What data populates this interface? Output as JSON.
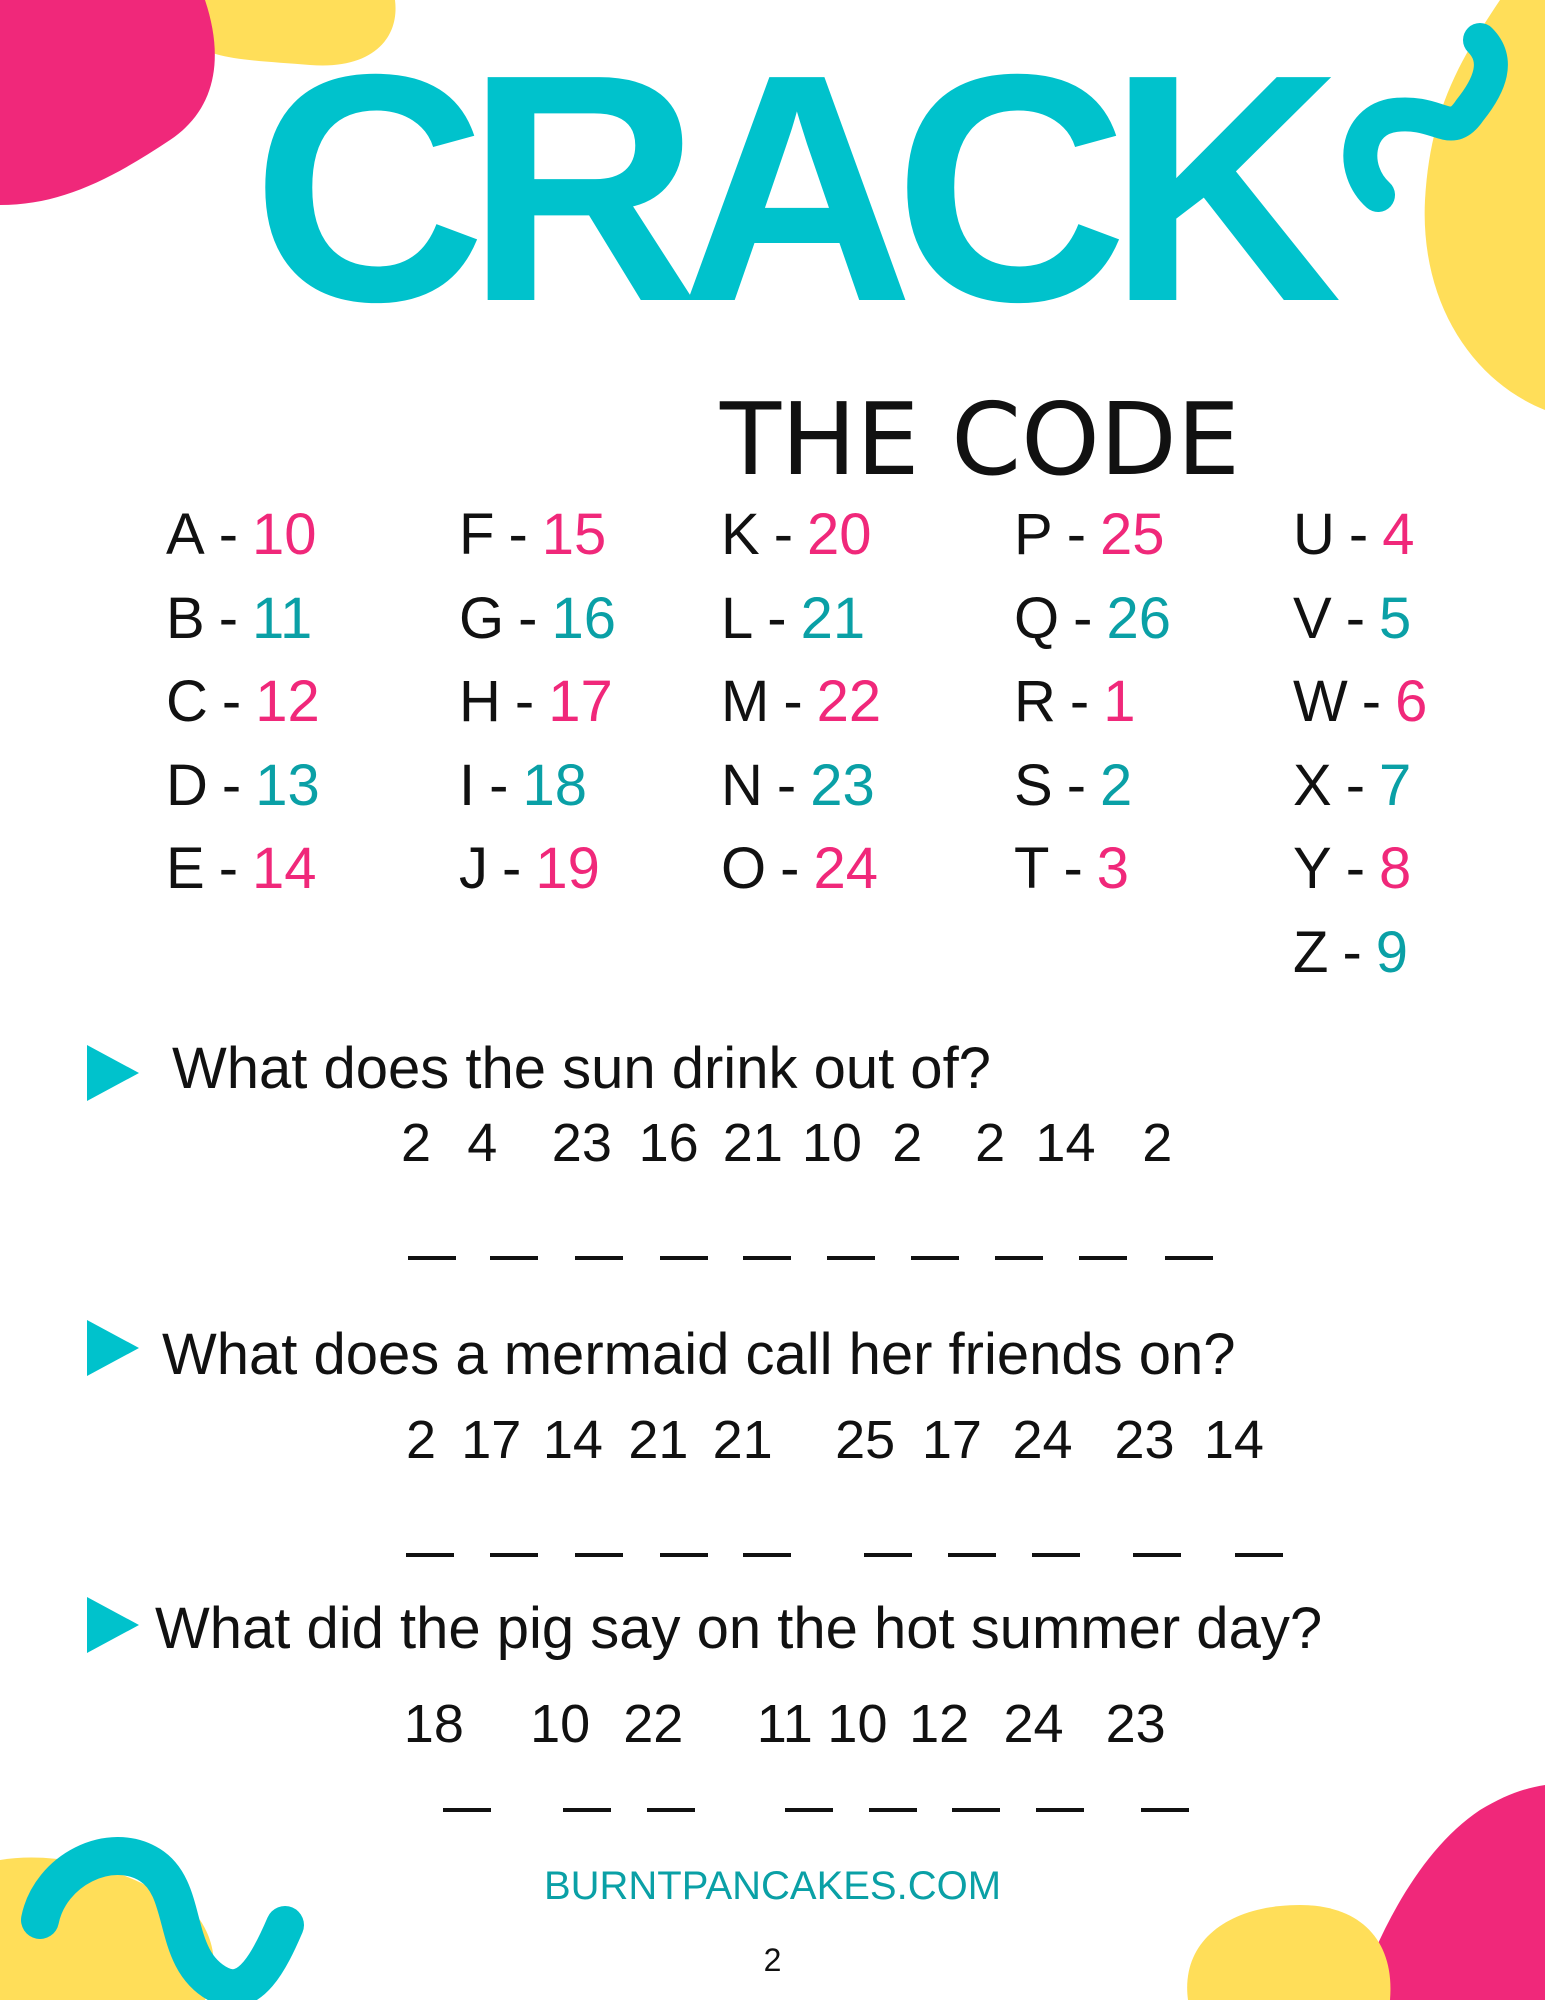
{
  "title": "CRACK",
  "subtitle": "THE CODE",
  "colors": {
    "accent": "#00c2cc",
    "pink": "#f0287a",
    "teal": "#0aa0a6",
    "yellow": "#ffde59"
  },
  "code_columns": [
    [
      {
        "letter": "A",
        "number": "10",
        "color": "pink"
      },
      {
        "letter": "B",
        "number": "11",
        "color": "teal"
      },
      {
        "letter": "C",
        "number": "12",
        "color": "pink"
      },
      {
        "letter": "D",
        "number": "13",
        "color": "teal"
      },
      {
        "letter": "E",
        "number": "14",
        "color": "pink"
      }
    ],
    [
      {
        "letter": "F",
        "number": "15",
        "color": "pink"
      },
      {
        "letter": "G",
        "number": "16",
        "color": "teal"
      },
      {
        "letter": "H",
        "number": "17",
        "color": "pink"
      },
      {
        "letter": "I",
        "number": "18",
        "color": "teal"
      },
      {
        "letter": "J",
        "number": "19",
        "color": "pink"
      }
    ],
    [
      {
        "letter": "K",
        "number": "20",
        "color": "pink"
      },
      {
        "letter": "L",
        "number": "21",
        "color": "teal"
      },
      {
        "letter": "M",
        "number": "22",
        "color": "pink"
      },
      {
        "letter": "N",
        "number": "23",
        "color": "teal"
      },
      {
        "letter": "O",
        "number": "24",
        "color": "pink"
      }
    ],
    [
      {
        "letter": "P",
        "number": "25",
        "color": "pink"
      },
      {
        "letter": "Q",
        "number": "26",
        "color": "teal"
      },
      {
        "letter": "R",
        "number": "1",
        "color": "pink"
      },
      {
        "letter": "S",
        "number": "2",
        "color": "teal"
      },
      {
        "letter": "T",
        "number": "3",
        "color": "pink"
      }
    ],
    [
      {
        "letter": "U",
        "number": "4",
        "color": "pink"
      },
      {
        "letter": "V",
        "number": "5",
        "color": "teal"
      },
      {
        "letter": "W",
        "number": "6",
        "color": "pink"
      },
      {
        "letter": "X",
        "number": "7",
        "color": "teal"
      },
      {
        "letter": "Y",
        "number": "8",
        "color": "pink"
      },
      {
        "letter": "Z",
        "number": "9",
        "color": "teal"
      }
    ]
  ],
  "questions": [
    {
      "text": "What does the sun drink out of?",
      "numbers": [
        "2",
        "4",
        "23",
        "16",
        "21",
        "10",
        "2",
        "2",
        "14",
        "2"
      ]
    },
    {
      "text": "What does a mermaid call her friends on?",
      "numbers": [
        "2",
        "17",
        "14",
        "21",
        "21",
        "25",
        "17",
        "24",
        "23",
        "14"
      ]
    },
    {
      "text": "What did the pig say on the hot summer day?",
      "numbers": [
        "18",
        "10",
        "22",
        "11",
        "10",
        "12",
        "24",
        "23"
      ]
    }
  ],
  "footer": "BURNTPANCAKES.COM",
  "page_number": "2",
  "dash": "-"
}
